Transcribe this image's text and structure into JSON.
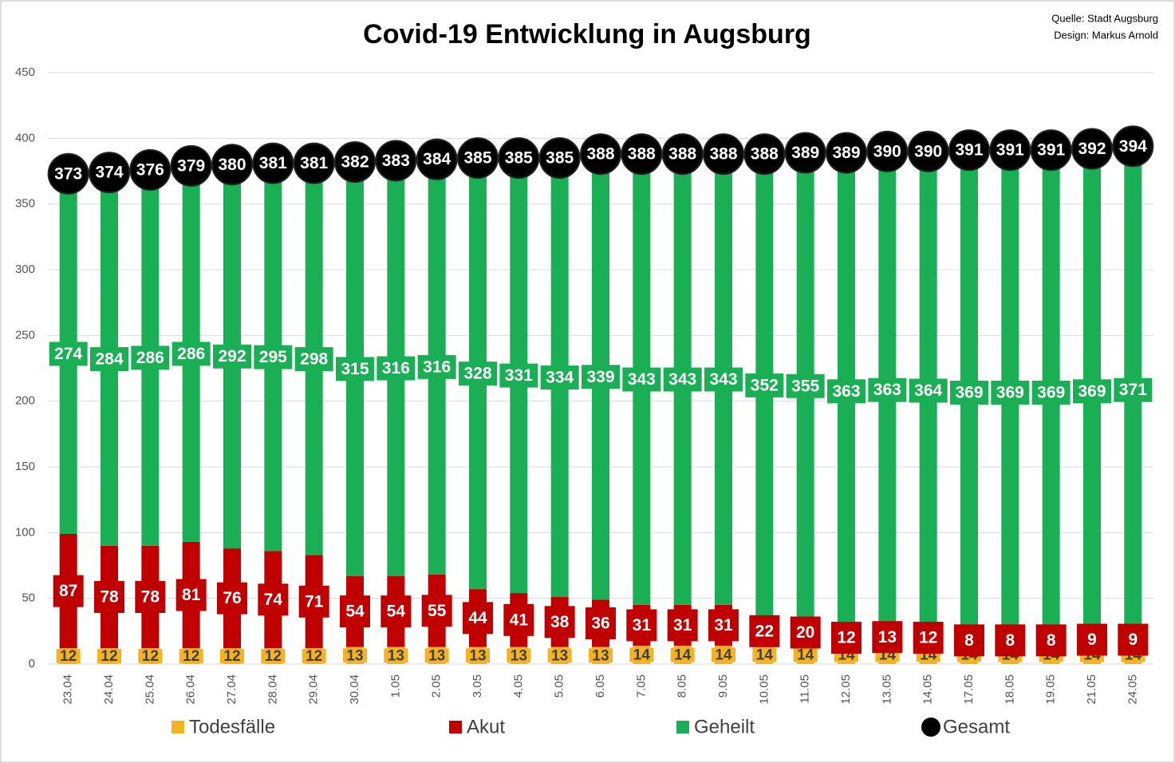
{
  "chart_data": {
    "type": "bar",
    "stacked": true,
    "title": "Covid-19 Entwicklung in Augsburg",
    "source": "Quelle: Stadt Augsburg",
    "design": "Design: Markus Arnold",
    "categories": [
      "23.04",
      "24.04",
      "25.04",
      "26.04",
      "27.04",
      "28.04",
      "29.04",
      "30.04",
      "1.05",
      "2.05",
      "3.05",
      "4.05",
      "5.05",
      "6.05",
      "7.05",
      "8.05",
      "9.05",
      "10.05",
      "11.05",
      "12.05",
      "13.05",
      "14.05",
      "17.05",
      "18.05",
      "19.05",
      "21.05",
      "24.05"
    ],
    "series": [
      {
        "name": "Todesfälle",
        "color": "#f5b324",
        "values": [
          12,
          12,
          12,
          12,
          12,
          12,
          12,
          13,
          13,
          13,
          13,
          13,
          13,
          13,
          14,
          14,
          14,
          14,
          14,
          14,
          14,
          14,
          14,
          14,
          14,
          14,
          14
        ]
      },
      {
        "name": "Akut",
        "color": "#c00000",
        "values": [
          87,
          78,
          78,
          81,
          76,
          74,
          71,
          54,
          54,
          55,
          44,
          41,
          38,
          36,
          31,
          31,
          31,
          22,
          20,
          12,
          13,
          12,
          8,
          8,
          8,
          9,
          9
        ]
      },
      {
        "name": "Geheilt",
        "color": "#1aaf54",
        "values": [
          274,
          284,
          286,
          286,
          292,
          295,
          298,
          315,
          316,
          316,
          328,
          331,
          334,
          339,
          343,
          343,
          343,
          352,
          355,
          363,
          363,
          364,
          369,
          369,
          369,
          369,
          371
        ]
      },
      {
        "name": "Gesamt",
        "color": "#000000",
        "type": "scatter",
        "values": [
          373,
          374,
          376,
          379,
          380,
          381,
          381,
          382,
          383,
          384,
          385,
          385,
          385,
          388,
          388,
          388,
          388,
          388,
          389,
          389,
          390,
          390,
          391,
          391,
          391,
          392,
          394
        ]
      }
    ],
    "ylim": [
      0,
      450
    ],
    "yticks": [
      0,
      50,
      100,
      150,
      200,
      250,
      300,
      350,
      400,
      450
    ],
    "grid": true
  }
}
